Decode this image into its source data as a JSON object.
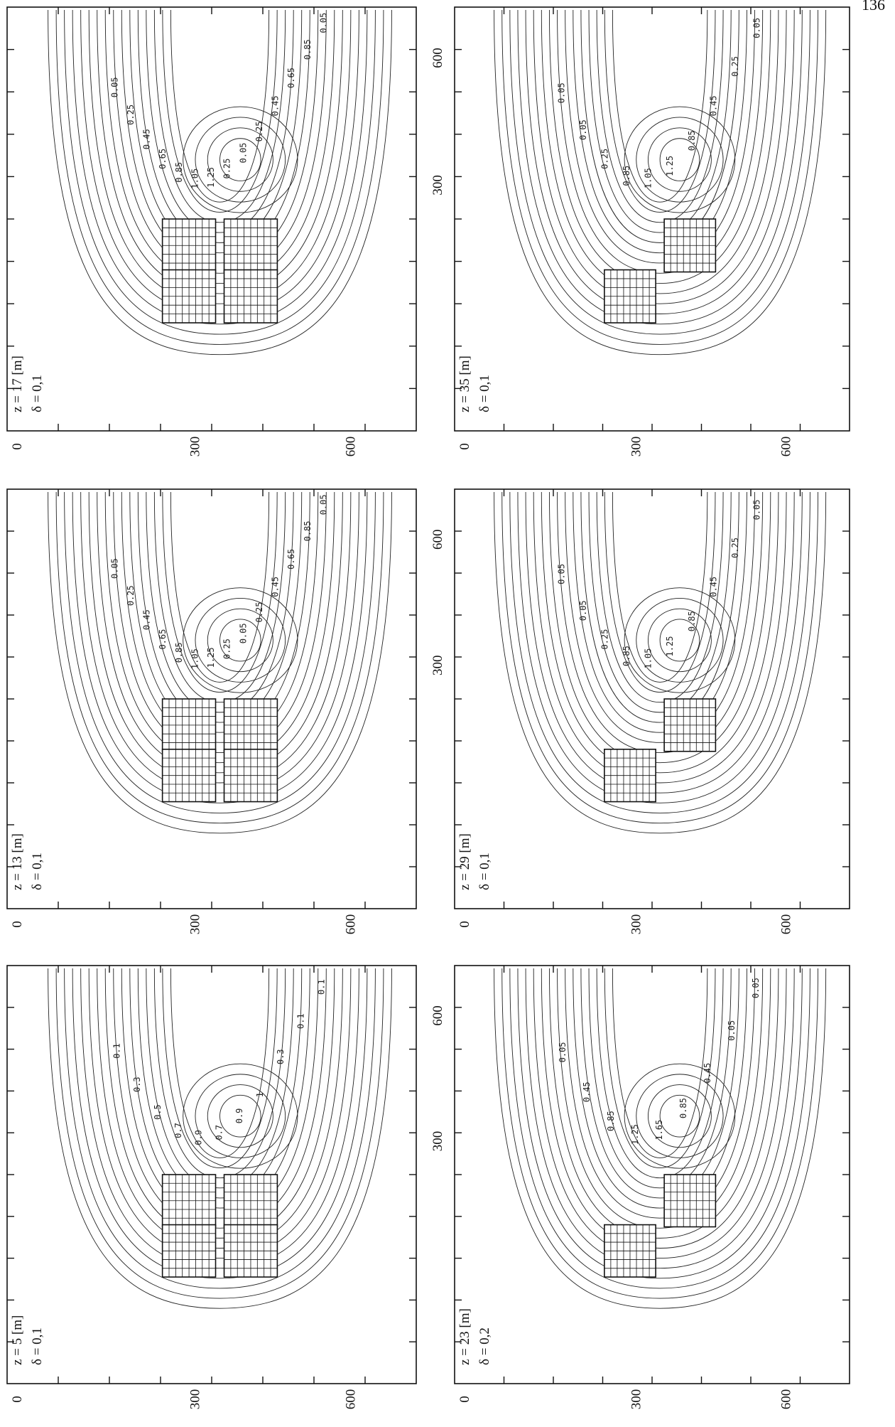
{
  "page_number": "136",
  "tick_labels": {
    "t0": "0",
    "t300": "300",
    "t600": "600"
  },
  "panels": [
    {
      "id": "a",
      "z_label": "z = 5 [m]",
      "delta_label": "δ = 0,1",
      "contour_labels": [
        "0.1",
        "0.3",
        "0.5",
        "0.7",
        "0.9",
        "0.7",
        "0.9",
        "1",
        "0.3",
        "0.1",
        "0.1"
      ]
    },
    {
      "id": "b",
      "z_label": "z = 13 [m]",
      "delta_label": "δ = 0,1",
      "contour_labels": [
        "0.05",
        "0.25",
        "0.45",
        "0.65",
        "0.85",
        "1.05",
        "1.25",
        "0.25",
        "0.05",
        "0.25",
        "0.45",
        "0.65",
        "0.85",
        "0.05"
      ]
    },
    {
      "id": "c",
      "z_label": "z = 17 [m]",
      "delta_label": "δ = 0,1",
      "contour_labels": [
        "0.05",
        "0.25",
        "0.45",
        "0.65",
        "0.85",
        "1.05",
        "1.25",
        "0.25",
        "0.05",
        "0.25",
        "0.45",
        "0.65",
        "0.85",
        "0.05"
      ]
    },
    {
      "id": "d",
      "z_label": "z = 23 [m]",
      "delta_label": "δ = 0,2",
      "contour_labels": [
        "0.05",
        "0.45",
        "0.85",
        "1.25",
        "1.65",
        "0.85",
        "0.45",
        "0.05",
        "0.05"
      ]
    },
    {
      "id": "e",
      "z_label": "z = 29 [m]",
      "delta_label": "δ = 0,1",
      "contour_labels": [
        "0.05",
        "0.05",
        "0.25",
        "0.85",
        "1.05",
        "1.25",
        "0.85",
        "0.45",
        "0.25",
        "0.05"
      ]
    },
    {
      "id": "f",
      "z_label": "z = 35 [m]",
      "delta_label": "δ = 0,1",
      "contour_labels": [
        "0.05",
        "0.05",
        "0.25",
        "0.85",
        "1.05",
        "1.25",
        "0.85",
        "0.45",
        "0.25",
        "0.05"
      ]
    }
  ]
}
